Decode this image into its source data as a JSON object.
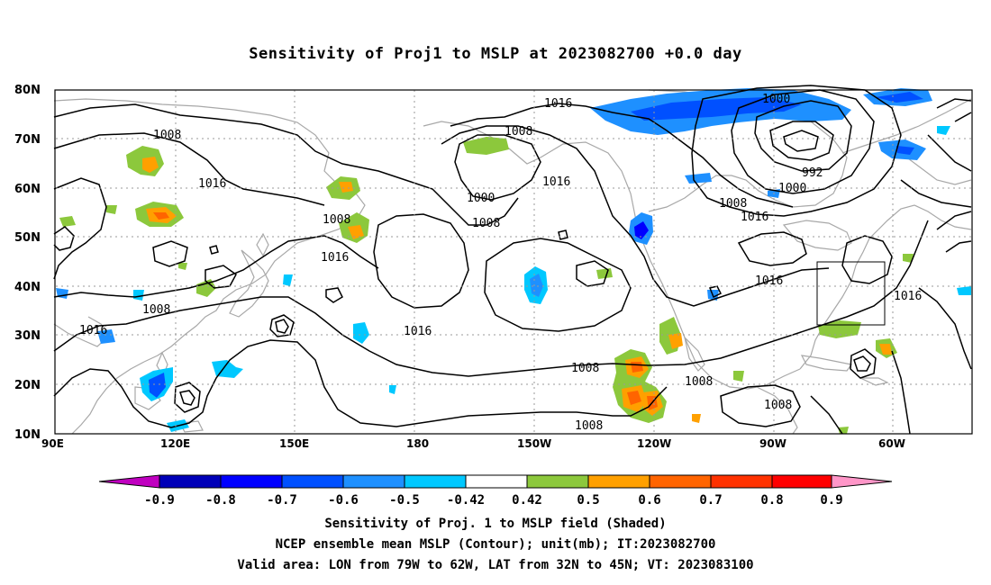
{
  "title": "Sensitivity of Proj1 to MSLP at 2023082700 +0.0 day",
  "lat_labels": [
    "80N",
    "70N",
    "60N",
    "50N",
    "40N",
    "30N",
    "20N",
    "10N"
  ],
  "lon_labels": [
    "90E",
    "120E",
    "150E",
    "180",
    "150W",
    "120W",
    "90W",
    "60W"
  ],
  "contour_labels": [
    "1016",
    "1000",
    "1008",
    "1008",
    "1016",
    "1000",
    "1008",
    "992",
    "1000",
    "1008",
    "1016",
    "1008",
    "1016",
    "1008",
    "1016",
    "1016",
    "1016",
    "1016",
    "1016",
    "1008",
    "1008",
    "1008"
  ],
  "colorbar": {
    "labels": [
      "-0.9",
      "-0.8",
      "-0.7",
      "-0.6",
      "-0.5",
      "-0.42",
      "0.42",
      "0.5",
      "0.6",
      "0.7",
      "0.8",
      "0.9"
    ],
    "colors": [
      "#c000c0",
      "#0000b8",
      "#0000ff",
      "#0050ff",
      "#1e90ff",
      "#00c8ff",
      "#ffffff",
      "#8cc83c",
      "#ffa000",
      "#ff6400",
      "#ff3200",
      "#ff0000",
      "#ff96c8"
    ]
  },
  "captions": [
    "Sensitivity of Proj. 1 to MSLP field (Shaded)",
    "NCEP ensemble mean MSLP (Contour); unit(mb); IT:2023082700",
    "Valid area: LON from 79W to 62W, LAT from 32N to 45N; VT: 2023083100"
  ]
}
